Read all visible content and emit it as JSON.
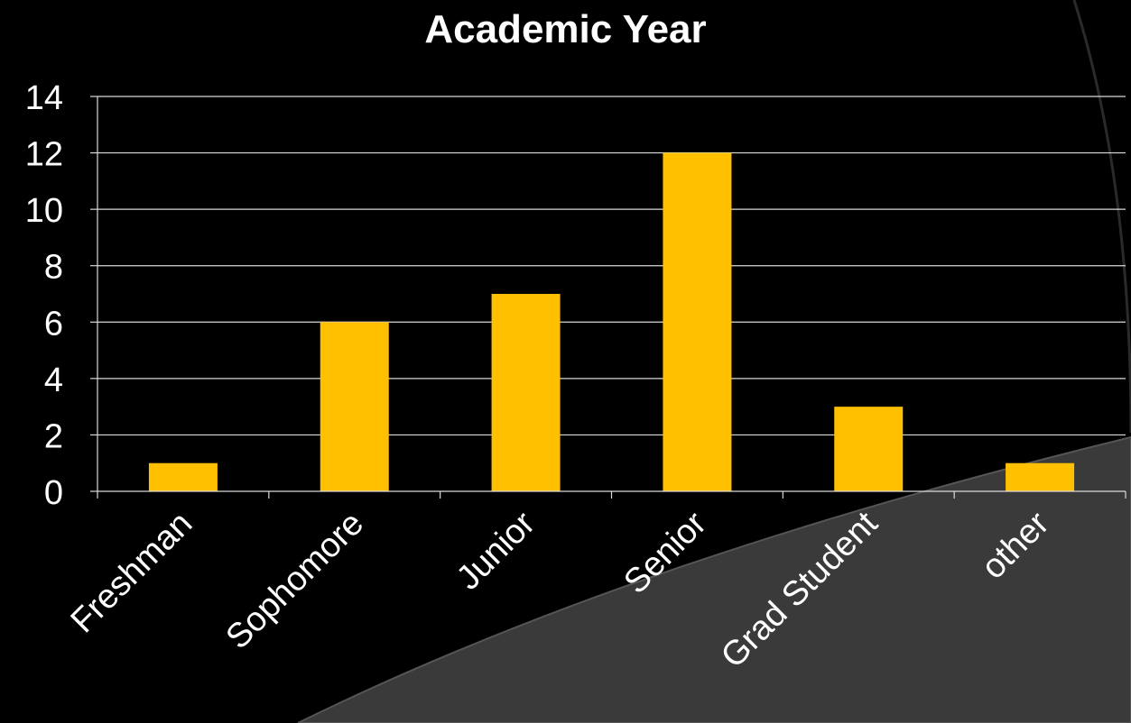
{
  "chart_data": {
    "type": "bar",
    "title": "Academic Year",
    "categories": [
      "Freshman",
      "Sophomore",
      "Junior",
      "Senior",
      "Grad Student",
      "other"
    ],
    "values": [
      1,
      6,
      7,
      12,
      3,
      1
    ],
    "ylim": [
      0,
      14
    ],
    "y_ticks": [
      "0",
      "2",
      "4",
      "6",
      "8",
      "10",
      "12",
      "14"
    ],
    "grid": true,
    "legend": "none",
    "bar_color": "#FFC000",
    "text_color": "#FFFFFF",
    "gridline_color": "#D9D9D9",
    "background_color": "#000000",
    "swoosh_color": "#3A3A3A"
  }
}
